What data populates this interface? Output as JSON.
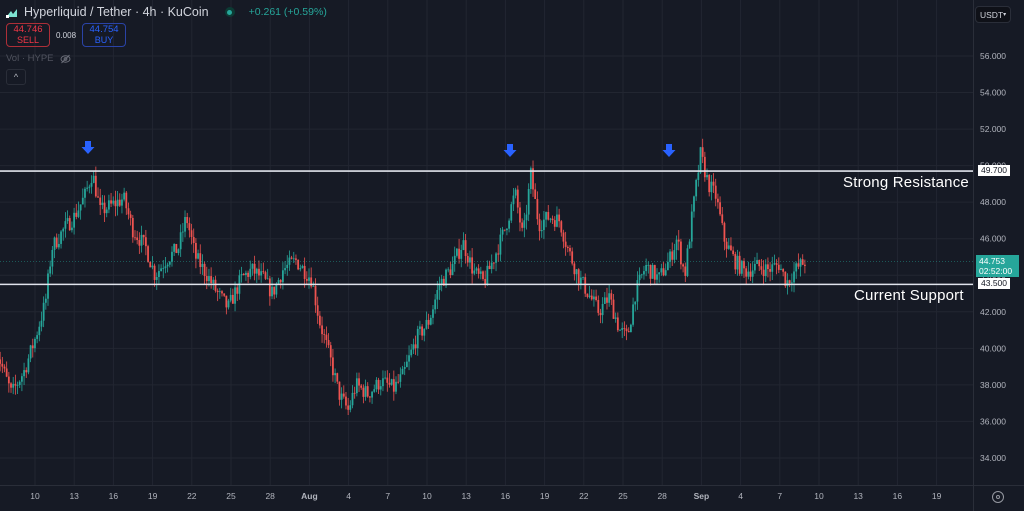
{
  "header": {
    "symbol_title": "Hyperliquid / Tether · 4h · KuCoin",
    "change": "+0.261 (+0.59%)",
    "sell_price": "44.746",
    "sell_label": "SELL",
    "spread": "0.008",
    "buy_price": "44.754",
    "buy_label": "BUY",
    "volume_label": "Vol · HYPE",
    "collapse_icon": "^",
    "currency": "USDT"
  },
  "annotations": {
    "resistance_label": "Strong Resistance",
    "resistance_value": "49.700",
    "support_label": "Current Support",
    "support_value": "43.500",
    "last_price": "44.753",
    "countdown": "02:52:00"
  },
  "colors": {
    "background": "#161a25",
    "grid": "#222631",
    "up": "#26a69a",
    "down": "#ef5350",
    "level_line": "#e0e3eb",
    "arrow": "#2962ff",
    "axis_text": "#b2b5be"
  },
  "chart_data": {
    "type": "candlestick",
    "title": "Hyperliquid / Tether · 4h · KuCoin",
    "xlabel": "",
    "ylabel": "USDT",
    "ylim": [
      33,
      57.5
    ],
    "grid": true,
    "y_ticks": [
      "56.000",
      "54.000",
      "52.000",
      "50.000",
      "48.000",
      "46.000",
      "44.000",
      "42.000",
      "40.000",
      "38.000",
      "36.000",
      "34.000"
    ],
    "x_ticks": [
      "10",
      "13",
      "16",
      "19",
      "22",
      "25",
      "28",
      "Aug",
      "4",
      "7",
      "10",
      "13",
      "16",
      "19",
      "22",
      "25",
      "28",
      "Sep",
      "4",
      "7",
      "10",
      "13",
      "16",
      "19"
    ],
    "horizontal_levels": [
      {
        "name": "Strong Resistance",
        "value": 49.7
      },
      {
        "name": "Current Support",
        "value": 43.5
      }
    ],
    "markers": [
      {
        "type": "down-arrow",
        "date": "Jul 14",
        "price": 49.7
      },
      {
        "type": "down-arrow",
        "date": "Aug 15",
        "price": 49.5
      },
      {
        "type": "down-arrow",
        "date": "Aug 27",
        "price": 50.6
      }
    ],
    "price_path": {
      "description": "Approximate close path of 4h candles (day offset from Jul 10 start ~ Jul 7, value)",
      "points": [
        [
          0,
          40.0
        ],
        [
          1.2,
          37.5
        ],
        [
          2.2,
          38.8
        ],
        [
          3.0,
          40.5
        ],
        [
          3.8,
          42.5
        ],
        [
          4.3,
          45.5
        ],
        [
          5.2,
          46.5
        ],
        [
          6.0,
          47.2
        ],
        [
          6.8,
          48.3
        ],
        [
          7.4,
          49.6
        ],
        [
          8.0,
          47.5
        ],
        [
          8.8,
          47.8
        ],
        [
          9.8,
          48.2
        ],
        [
          10.5,
          46.5
        ],
        [
          11.5,
          45.5
        ],
        [
          12.2,
          44.0
        ],
        [
          13.0,
          44.8
        ],
        [
          14.0,
          45.5
        ],
        [
          14.6,
          47.2
        ],
        [
          15.3,
          45.0
        ],
        [
          16.2,
          44.0
        ],
        [
          17.0,
          43.0
        ],
        [
          17.8,
          42.2
        ],
        [
          18.8,
          43.8
        ],
        [
          19.6,
          44.3
        ],
        [
          20.5,
          43.8
        ],
        [
          21.2,
          43.0
        ],
        [
          22.0,
          44.3
        ],
        [
          23.0,
          44.8
        ],
        [
          24.2,
          43.8
        ],
        [
          24.8,
          41.5
        ],
        [
          25.6,
          39.5
        ],
        [
          26.3,
          37.5
        ],
        [
          27.0,
          36.6
        ],
        [
          27.6,
          38.0
        ],
        [
          28.5,
          37.5
        ],
        [
          29.5,
          38.2
        ],
        [
          30.5,
          37.8
        ],
        [
          31.2,
          38.5
        ],
        [
          32.2,
          40.5
        ],
        [
          33.2,
          41.5
        ],
        [
          34.0,
          43.5
        ],
        [
          35.0,
          44.5
        ],
        [
          35.8,
          45.8
        ],
        [
          36.6,
          44.2
        ],
        [
          37.4,
          43.6
        ],
        [
          38.2,
          45.0
        ],
        [
          39.0,
          46.5
        ],
        [
          39.8,
          48.5
        ],
        [
          40.4,
          46.0
        ],
        [
          41.0,
          49.5
        ],
        [
          41.6,
          46.8
        ],
        [
          42.4,
          47.2
        ],
        [
          43.2,
          47.0
        ],
        [
          43.8,
          45.5
        ],
        [
          44.6,
          44.0
        ],
        [
          45.4,
          43.0
        ],
        [
          46.2,
          42.0
        ],
        [
          47.0,
          42.8
        ],
        [
          47.8,
          41.0
        ],
        [
          48.4,
          40.6
        ],
        [
          49.0,
          43.0
        ],
        [
          49.8,
          44.5
        ],
        [
          50.8,
          43.8
        ],
        [
          51.6,
          44.8
        ],
        [
          52.2,
          46.0
        ],
        [
          52.8,
          44.0
        ],
        [
          53.4,
          47.5
        ],
        [
          54.0,
          50.6
        ],
        [
          54.6,
          49.0
        ],
        [
          55.2,
          48.3
        ],
        [
          55.8,
          46.0
        ],
        [
          56.6,
          44.8
        ],
        [
          57.4,
          44.2
        ],
        [
          58.4,
          44.5
        ],
        [
          59.2,
          44.3
        ],
        [
          60.0,
          44.6
        ],
        [
          60.6,
          43.6
        ],
        [
          61.4,
          44.4
        ],
        [
          62.0,
          44.75
        ]
      ]
    },
    "last_price": 44.753
  }
}
